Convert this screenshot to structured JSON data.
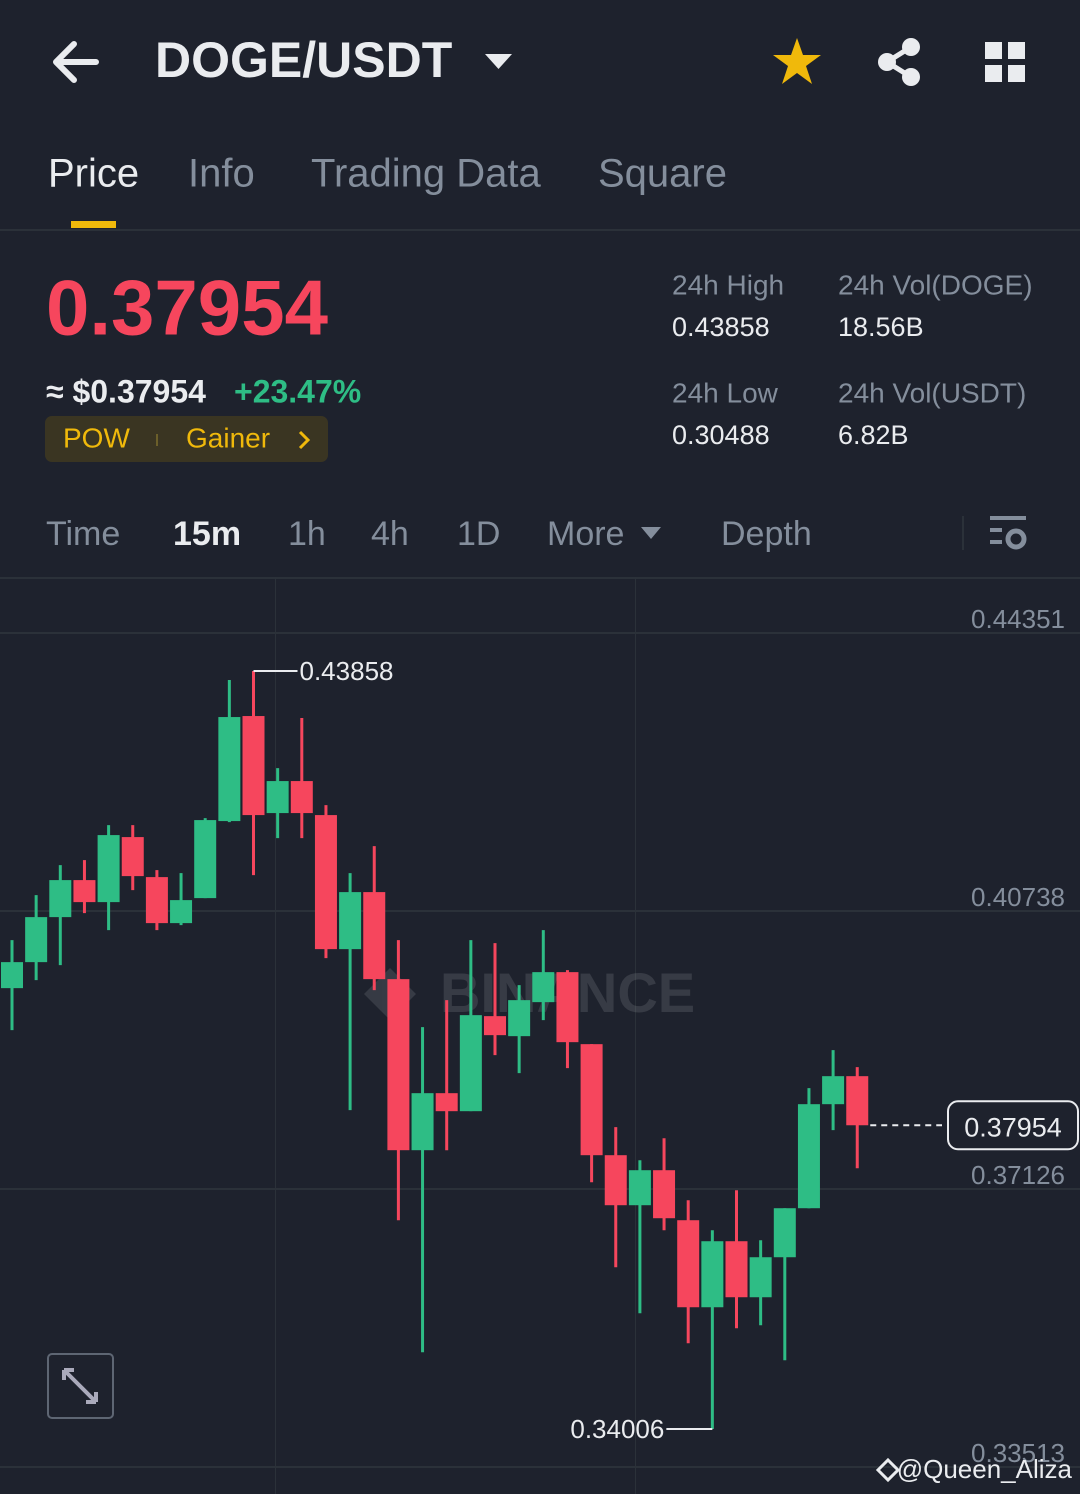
{
  "header": {
    "pair": "DOGE/USDT"
  },
  "tabs": [
    "Price",
    "Info",
    "Trading Data",
    "Square"
  ],
  "price": {
    "last": "0.37954",
    "usd": "≈ $0.37954",
    "change": "+23.47%",
    "tags": [
      "POW",
      "Gainer"
    ]
  },
  "stats": [
    {
      "label": "24h High",
      "value": "0.43858"
    },
    {
      "label": "24h Vol(DOGE)",
      "value": "18.56B"
    },
    {
      "label": "24h Low",
      "value": "0.30488"
    },
    {
      "label": "24h Vol(USDT)",
      "value": "6.82B"
    }
  ],
  "intervals": [
    "Time",
    "15m",
    "1h",
    "4h",
    "1D",
    "More",
    "Depth"
  ],
  "chart_data": {
    "type": "candlestick",
    "up_color": "#2ebd85",
    "down_color": "#f6465d",
    "ylim": [
      0.33162,
      0.4504
    ],
    "yticks": [
      0.44351,
      0.40738,
      0.37126,
      0.33513
    ],
    "grid": true,
    "open": [
      0.39736,
      0.40074,
      0.40659,
      0.4114,
      0.40854,
      0.41699,
      0.41179,
      0.40581,
      0.40906,
      0.41907,
      0.43272,
      0.42011,
      0.42427,
      0.41985,
      0.40243,
      0.40984,
      0.39853,
      0.3763,
      0.38371,
      0.38137,
      0.39372,
      0.39112,
      0.39554,
      0.39944,
      0.39008,
      0.37565,
      0.36915,
      0.3737,
      0.3672,
      0.35589,
      0.36447,
      0.35719,
      0.36239,
      0.36876,
      0.38228,
      0.38592
    ],
    "high": [
      0.4036,
      0.40945,
      0.41335,
      0.414,
      0.41855,
      0.41855,
      0.4127,
      0.41231,
      0.41946,
      0.4374,
      0.43858,
      0.42596,
      0.43246,
      0.42115,
      0.41231,
      0.41582,
      0.4036,
      0.39229,
      0.3958,
      0.4036,
      0.40321,
      0.39775,
      0.4049,
      0.3997,
      0.39008,
      0.37929,
      0.375,
      0.37786,
      0.3698,
      0.3659,
      0.3711,
      0.3646,
      0.36876,
      0.38436,
      0.3893,
      0.38709
    ],
    "low": [
      0.3919,
      0.3984,
      0.40035,
      0.40711,
      0.4049,
      0.4101,
      0.4049,
      0.40555,
      0.40906,
      0.41894,
      0.41205,
      0.41686,
      0.41686,
      0.40126,
      0.3815,
      0.3971,
      0.3672,
      0.35004,
      0.3763,
      0.38137,
      0.38865,
      0.38631,
      0.3932,
      0.38696,
      0.37214,
      0.36109,
      0.35511,
      0.3659,
      0.35121,
      0.34006,
      0.35316,
      0.35355,
      0.349,
      0.36876,
      0.3789,
      0.37396
    ],
    "close": [
      0.40074,
      0.40659,
      0.4114,
      0.40854,
      0.41725,
      0.41192,
      0.40581,
      0.4088,
      0.4192,
      0.43259,
      0.41985,
      0.42427,
      0.42011,
      0.40243,
      0.40984,
      0.39853,
      0.3763,
      0.38371,
      0.38137,
      0.39385,
      0.39125,
      0.3958,
      0.39944,
      0.39034,
      0.37565,
      0.36915,
      0.3737,
      0.36746,
      0.35589,
      0.36447,
      0.35719,
      0.36239,
      0.36876,
      0.38228,
      0.38592,
      0.37954
    ],
    "high_annotation": 0.43858,
    "low_annotation": 0.34006,
    "last_price": 0.37954
  },
  "watermark": "BINANCE",
  "credit": "@Queen_Aliza"
}
